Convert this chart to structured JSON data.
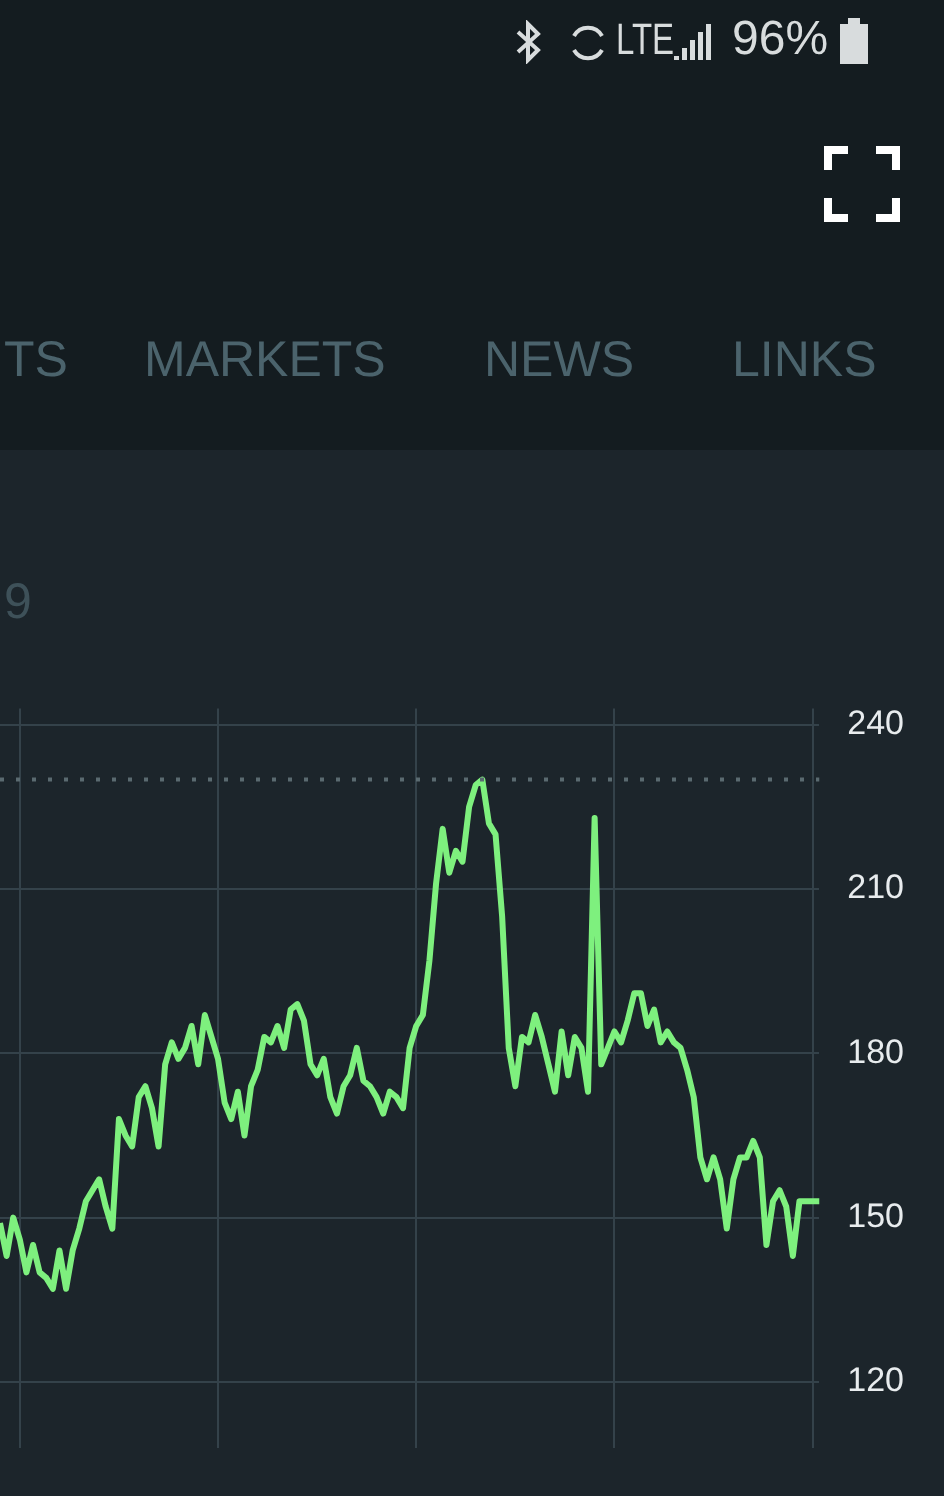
{
  "chart_data": {
    "type": "line",
    "subtitle": "9",
    "annotations": [
      "96%",
      "LTE",
      "TS",
      "MARKETS",
      "NEWS",
      "LINKS"
    ],
    "categories": [
      null,
      null,
      null,
      null,
      null,
      null,
      null,
      null,
      null,
      null,
      null,
      null,
      null,
      null,
      null,
      null,
      null,
      null,
      null,
      null,
      null,
      null,
      null,
      null,
      null,
      null,
      null,
      null,
      null,
      null,
      null,
      null,
      null,
      null,
      null,
      null,
      null,
      null,
      null,
      null,
      null,
      null,
      null,
      null,
      null,
      null,
      null,
      null,
      null,
      null,
      null,
      null,
      null,
      null,
      null,
      null,
      null,
      null,
      null,
      null,
      null,
      null,
      null,
      null,
      null,
      null,
      null,
      null,
      null,
      null,
      null,
      null,
      null,
      null,
      null,
      null,
      null,
      null,
      null,
      null,
      null,
      null,
      null,
      null,
      null,
      null,
      null,
      null,
      null,
      null,
      null,
      null,
      null,
      null,
      null,
      null,
      null,
      null,
      null,
      null,
      null,
      null,
      null,
      null,
      null,
      null,
      null,
      null,
      null,
      null,
      null,
      null,
      null,
      null,
      null,
      null,
      null,
      null,
      null,
      null,
      null,
      null,
      null,
      null,
      null
    ],
    "series": [
      {
        "color": "#7ef07e",
        "values": [
          149,
          143,
          150,
          146,
          140,
          145,
          140,
          139,
          137,
          144,
          137,
          144,
          148,
          153,
          155,
          157,
          152,
          148,
          168,
          165,
          163,
          172,
          174,
          170,
          163,
          178,
          182,
          179,
          181,
          185,
          178,
          187,
          183,
          179,
          171,
          168,
          173,
          165,
          174,
          177,
          183,
          182,
          185,
          181,
          188,
          189,
          186,
          178,
          176,
          179,
          172,
          169,
          174,
          176,
          181,
          175,
          174,
          172,
          169,
          173,
          172,
          170,
          181,
          185,
          187,
          197,
          211,
          221,
          213,
          217,
          215,
          225,
          229,
          230,
          222,
          220,
          205,
          181,
          174,
          183,
          182,
          187,
          183,
          178,
          173,
          184,
          176,
          183,
          181,
          173,
          223,
          178,
          181,
          184,
          182,
          186,
          191,
          191,
          185,
          188,
          182,
          184,
          182,
          181,
          177,
          172,
          161,
          157,
          161,
          157,
          148,
          157,
          161,
          161,
          164,
          161,
          145,
          153,
          155,
          152,
          143,
          153,
          153,
          153,
          153
        ]
      }
    ],
    "ylim": [
      108,
      243
    ],
    "yticks": [
      120,
      150,
      180,
      210,
      240
    ],
    "ref_lines": [
      {
        "axis": "y",
        "value": 230,
        "color": "#5a6a70",
        "line_style": "dotted"
      }
    ],
    "grid": true,
    "legend": false,
    "marker": "none",
    "line_style": "solid"
  }
}
